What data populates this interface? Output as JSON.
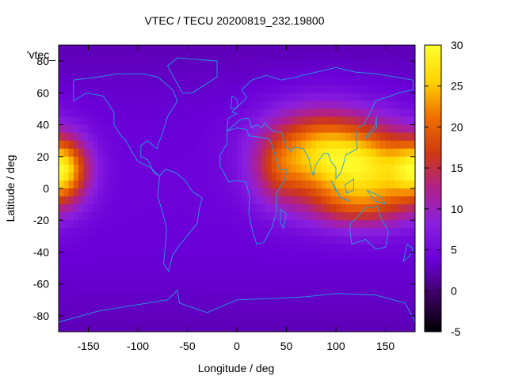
{
  "chart_data": {
    "type": "heatmap",
    "title": "VTEC / TECU 20200819_232.19800",
    "xlabel": "Longitude / deg",
    "ylabel": "Latitude / deg",
    "series_label": "'vtec_",
    "xlim": [
      -180,
      180
    ],
    "ylim": [
      -90,
      90
    ],
    "xticks": [
      -150,
      -100,
      -50,
      0,
      50,
      100,
      150
    ],
    "yticks": [
      -80,
      -60,
      -40,
      -20,
      0,
      20,
      40,
      60,
      80
    ],
    "colorbar": {
      "min": -5,
      "max": 30,
      "ticks": [
        -5,
        0,
        5,
        10,
        15,
        20,
        25,
        30
      ],
      "palette": [
        "#000000",
        "#3a0060",
        "#6a00d8",
        "#8a1fe0",
        "#b0208a",
        "#d03a10",
        "#f07000",
        "#ffd400",
        "#ffff30"
      ]
    },
    "background_level_tecu": 4,
    "anomalies": [
      {
        "lon": -175,
        "lat": 12,
        "amplitude": 17,
        "sigma_lon": 18,
        "sigma_lat": 14
      },
      {
        "lon": 108,
        "lat": 15,
        "amplitude": 18,
        "sigma_lon": 45,
        "sigma_lat": 20
      },
      {
        "lon": 75,
        "lat": 28,
        "amplitude": 9,
        "sigma_lon": 38,
        "sigma_lat": 18
      },
      {
        "lon": 150,
        "lat": 8,
        "amplitude": 8,
        "sigma_lon": 30,
        "sigma_lat": 18
      },
      {
        "lon": 40,
        "lat": 10,
        "amplitude": 6,
        "sigma_lon": 18,
        "sigma_lat": 15
      },
      {
        "lon": 120,
        "lat": -12,
        "amplitude": 6,
        "sigma_lon": 35,
        "sigma_lat": 10
      }
    ],
    "grid": false,
    "legend_position": "top-left",
    "coastline_color": "#1fa0e0"
  }
}
